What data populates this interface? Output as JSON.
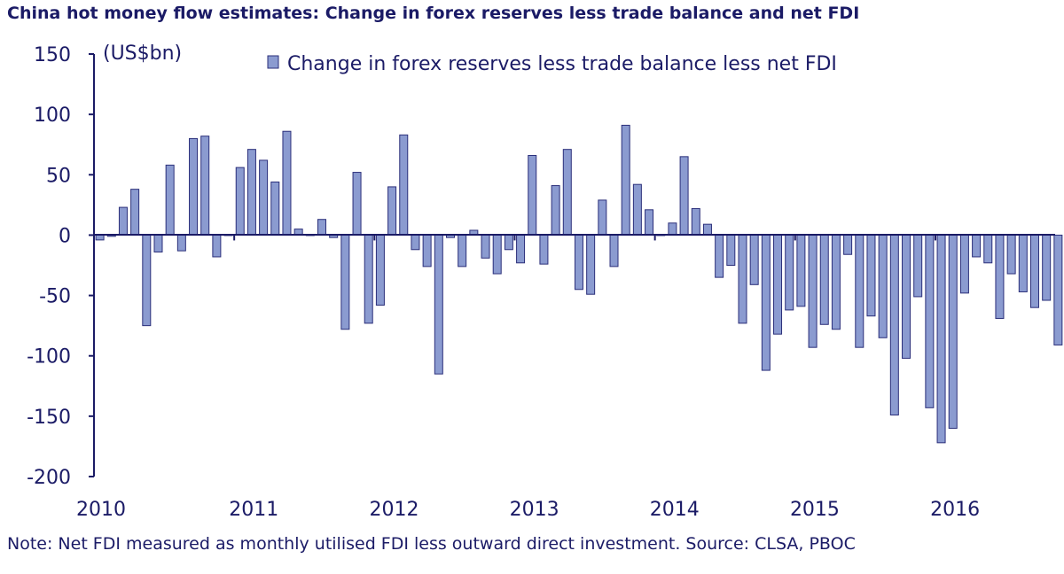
{
  "title": "China hot money flow estimates: Change in forex reserves less trade balance and net FDI",
  "note": "Note: Net FDI measured as monthly utilised FDI less outward direct investment. Source: CLSA, PBOC",
  "colors": {
    "bar_fill": "#8b9bd0",
    "bar_stroke": "#2b2f7a",
    "axis": "#1b1b66",
    "text": "#1b1b66"
  },
  "chart_data": {
    "type": "bar",
    "unit_label": "(US$bn)",
    "legend": "Change in forex reserves less trade balance less net FDI",
    "legend_position": "top",
    "ylim": [
      -200,
      150
    ],
    "yticks": [
      150,
      100,
      50,
      0,
      -50,
      -100,
      -150,
      -200
    ],
    "grid": false,
    "xlabels": [
      "2010",
      "2011",
      "2012",
      "2013",
      "2014",
      "2015",
      "2016"
    ],
    "series": [
      {
        "name": "Change in forex reserves less trade balance less net FDI",
        "start": "2010-01",
        "frequency": "monthly",
        "values": [
          -4,
          -1,
          23,
          38,
          -75,
          -14,
          58,
          -13,
          80,
          82,
          -18,
          0,
          56,
          71,
          62,
          44,
          86,
          5,
          0,
          13,
          -2,
          -78,
          52,
          -73,
          -58,
          40,
          83,
          -12,
          -26,
          -115,
          -2,
          -26,
          4,
          -19,
          -32,
          -12,
          -23,
          66,
          -24,
          41,
          71,
          -45,
          -49,
          29,
          -26,
          91,
          42,
          21,
          0,
          10,
          65,
          22,
          9,
          -35,
          -25,
          -73,
          -41,
          -112,
          -82,
          -62,
          -59,
          -93,
          -74,
          -78,
          -16,
          -93,
          -67,
          -85,
          -149,
          -102,
          -51,
          -143,
          -172,
          -160,
          -48,
          -18,
          -23,
          -69,
          -32,
          -47,
          -60,
          -54,
          -91
        ]
      }
    ]
  }
}
